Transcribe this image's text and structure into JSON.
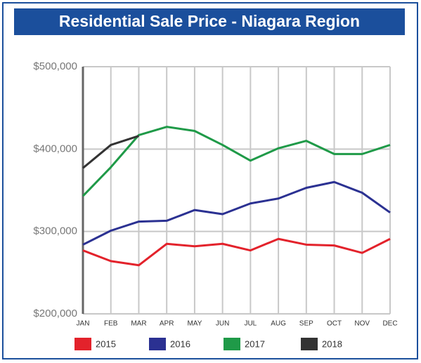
{
  "chart_data": {
    "type": "line",
    "title": "Residential Sale Price - Niagara Region",
    "categories": [
      "JAN",
      "FEB",
      "MAR",
      "APR",
      "MAY",
      "JUN",
      "JUL",
      "AUG",
      "SEP",
      "OCT",
      "NOV",
      "DEC"
    ],
    "series": [
      {
        "name": "2015",
        "color": "#e3222b",
        "values": [
          277000,
          264000,
          259000,
          285000,
          282000,
          285000,
          277000,
          291000,
          284000,
          283000,
          274000,
          291000
        ]
      },
      {
        "name": "2016",
        "color": "#2b3192",
        "values": [
          284000,
          301000,
          312000,
          313000,
          326000,
          321000,
          334000,
          340000,
          353000,
          360000,
          347000,
          323000
        ]
      },
      {
        "name": "2017",
        "color": "#1f9a48",
        "values": [
          343000,
          378000,
          417000,
          427000,
          422000,
          405000,
          386000,
          401000,
          410000,
          394000,
          394000,
          405000
        ]
      },
      {
        "name": "2018",
        "color": "#333333",
        "values": [
          377000,
          405000,
          416000,
          null,
          null,
          null,
          null,
          null,
          null,
          null,
          null,
          null
        ]
      }
    ],
    "ylim": [
      200000,
      500000
    ],
    "yticks": [
      {
        "value": 200000,
        "label": "$200,000"
      },
      {
        "value": 300000,
        "label": "$300,000"
      },
      {
        "value": 400000,
        "label": "$400,000"
      },
      {
        "value": 500000,
        "label": "$500,000"
      }
    ],
    "grid": true,
    "legend": "bottom"
  }
}
